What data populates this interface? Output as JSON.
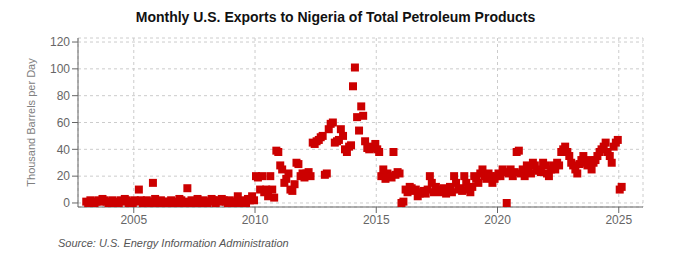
{
  "chart_data": {
    "type": "scatter",
    "title": "Monthly U.S. Exports to Nigeria of Total Petroleum Products",
    "ylabel": "Thousand Barrels per Day",
    "source": "Source: U.S. Energy Information Administration",
    "color": "#cc0000",
    "marker": "square",
    "grid": true,
    "xlim": [
      2002.7,
      2026.0
    ],
    "ylim": [
      -3,
      123
    ],
    "xticks": [
      2005,
      2010,
      2015,
      2020,
      2025
    ],
    "yticks": [
      0,
      20,
      40,
      60,
      80,
      100,
      120
    ],
    "x": [
      2003.04,
      2003.12,
      2003.21,
      2003.29,
      2003.38,
      2003.46,
      2003.54,
      2003.63,
      2003.71,
      2003.79,
      2003.88,
      2003.96,
      2004.04,
      2004.12,
      2004.21,
      2004.29,
      2004.38,
      2004.46,
      2004.54,
      2004.63,
      2004.71,
      2004.79,
      2004.88,
      2004.96,
      2005.04,
      2005.12,
      2005.21,
      2005.29,
      2005.38,
      2005.46,
      2005.54,
      2005.63,
      2005.71,
      2005.79,
      2005.88,
      2005.96,
      2006.04,
      2006.12,
      2006.21,
      2006.29,
      2006.38,
      2006.46,
      2006.54,
      2006.63,
      2006.71,
      2006.79,
      2006.88,
      2006.96,
      2007.04,
      2007.12,
      2007.21,
      2007.29,
      2007.38,
      2007.46,
      2007.54,
      2007.63,
      2007.71,
      2007.79,
      2007.88,
      2007.96,
      2008.04,
      2008.12,
      2008.21,
      2008.29,
      2008.38,
      2008.46,
      2008.54,
      2008.63,
      2008.71,
      2008.79,
      2008.88,
      2008.96,
      2009.04,
      2009.12,
      2009.21,
      2009.29,
      2009.38,
      2009.46,
      2009.54,
      2009.63,
      2009.71,
      2009.79,
      2009.88,
      2009.96,
      2010.04,
      2010.12,
      2010.21,
      2010.29,
      2010.38,
      2010.46,
      2010.54,
      2010.63,
      2010.71,
      2010.79,
      2010.88,
      2010.96,
      2011.04,
      2011.12,
      2011.21,
      2011.29,
      2011.38,
      2011.46,
      2011.54,
      2011.63,
      2011.71,
      2011.79,
      2011.88,
      2011.96,
      2012.04,
      2012.12,
      2012.21,
      2012.29,
      2012.38,
      2012.46,
      2012.54,
      2012.63,
      2012.71,
      2012.79,
      2012.88,
      2012.96,
      2013.04,
      2013.12,
      2013.21,
      2013.29,
      2013.38,
      2013.46,
      2013.54,
      2013.63,
      2013.71,
      2013.79,
      2013.88,
      2013.96,
      2014.04,
      2014.12,
      2014.21,
      2014.29,
      2014.38,
      2014.46,
      2014.54,
      2014.63,
      2014.71,
      2014.79,
      2014.88,
      2014.96,
      2015.04,
      2015.12,
      2015.21,
      2015.29,
      2015.38,
      2015.46,
      2015.54,
      2015.63,
      2015.71,
      2015.79,
      2015.88,
      2015.96,
      2016.04,
      2016.12,
      2016.21,
      2016.29,
      2016.38,
      2016.46,
      2016.54,
      2016.63,
      2016.71,
      2016.79,
      2016.88,
      2016.96,
      2017.04,
      2017.12,
      2017.21,
      2017.29,
      2017.38,
      2017.46,
      2017.54,
      2017.63,
      2017.71,
      2017.79,
      2017.88,
      2017.96,
      2018.04,
      2018.12,
      2018.21,
      2018.29,
      2018.38,
      2018.46,
      2018.54,
      2018.63,
      2018.71,
      2018.79,
      2018.88,
      2018.96,
      2019.04,
      2019.12,
      2019.21,
      2019.29,
      2019.38,
      2019.46,
      2019.54,
      2019.63,
      2019.71,
      2019.79,
      2019.88,
      2019.96,
      2020.04,
      2020.12,
      2020.21,
      2020.29,
      2020.38,
      2020.46,
      2020.54,
      2020.63,
      2020.71,
      2020.79,
      2020.88,
      2020.96,
      2021.04,
      2021.12,
      2021.21,
      2021.29,
      2021.38,
      2021.46,
      2021.54,
      2021.63,
      2021.71,
      2021.79,
      2021.88,
      2021.96,
      2022.04,
      2022.12,
      2022.21,
      2022.29,
      2022.38,
      2022.46,
      2022.54,
      2022.63,
      2022.71,
      2022.79,
      2022.88,
      2022.96,
      2023.04,
      2023.12,
      2023.21,
      2023.29,
      2023.38,
      2023.46,
      2023.54,
      2023.63,
      2023.71,
      2023.79,
      2023.88,
      2023.96,
      2024.04,
      2024.12,
      2024.21,
      2024.29,
      2024.38,
      2024.46,
      2024.54,
      2024.63,
      2024.71,
      2024.79,
      2024.88,
      2024.96,
      2025.04,
      2025.12
    ],
    "values": [
      1,
      0,
      2,
      1,
      0,
      1,
      2,
      1,
      3,
      2,
      1,
      0,
      1,
      2,
      0,
      1,
      0,
      2,
      1,
      3,
      2,
      0,
      1,
      0,
      2,
      1,
      10,
      2,
      0,
      1,
      2,
      1,
      0,
      15,
      3,
      1,
      0,
      2,
      1,
      0,
      1,
      0,
      2,
      1,
      0,
      0,
      3,
      2,
      0,
      1,
      11,
      0,
      2,
      1,
      0,
      3,
      1,
      0,
      2,
      1,
      0,
      1,
      3,
      2,
      0,
      2,
      1,
      3,
      2,
      1,
      0,
      2,
      0,
      0,
      1,
      5,
      0,
      2,
      1,
      0,
      3,
      2,
      5,
      2,
      20,
      19,
      10,
      20,
      8,
      10,
      5,
      20,
      10,
      4,
      39,
      38,
      28,
      25,
      15,
      18,
      22,
      10,
      9,
      14,
      30,
      29,
      20,
      22,
      19,
      22,
      23,
      20,
      45,
      44,
      46,
      47,
      49,
      50,
      21,
      22,
      55,
      59,
      60,
      45,
      46,
      47,
      55,
      50,
      40,
      38,
      42,
      43,
      87,
      101,
      64,
      54,
      72,
      65,
      46,
      41,
      40,
      42,
      41,
      44,
      40,
      38,
      20,
      25,
      18,
      22,
      20,
      19,
      38,
      21,
      23,
      22,
      0,
      1,
      10,
      8,
      12,
      11,
      9,
      10,
      5,
      7,
      8,
      9,
      7,
      10,
      20,
      15,
      8,
      12,
      10,
      9,
      8,
      11,
      7,
      10,
      12,
      8,
      20,
      15,
      10,
      11,
      9,
      20,
      15,
      10,
      8,
      12,
      20,
      18,
      15,
      22,
      25,
      20,
      18,
      22,
      20,
      15,
      18,
      20,
      22,
      20,
      25,
      23,
      0,
      22,
      25,
      20,
      23,
      38,
      39,
      22,
      25,
      20,
      28,
      25,
      22,
      30,
      28,
      25,
      24,
      23,
      30,
      28,
      22,
      20,
      25,
      28,
      25,
      30,
      28,
      38,
      40,
      42,
      38,
      35,
      30,
      28,
      25,
      22,
      29,
      32,
      35,
      30,
      28,
      32,
      25,
      30,
      32,
      35,
      38,
      40,
      42,
      45,
      38,
      35,
      30,
      42,
      45,
      47,
      10,
      12
    ]
  }
}
